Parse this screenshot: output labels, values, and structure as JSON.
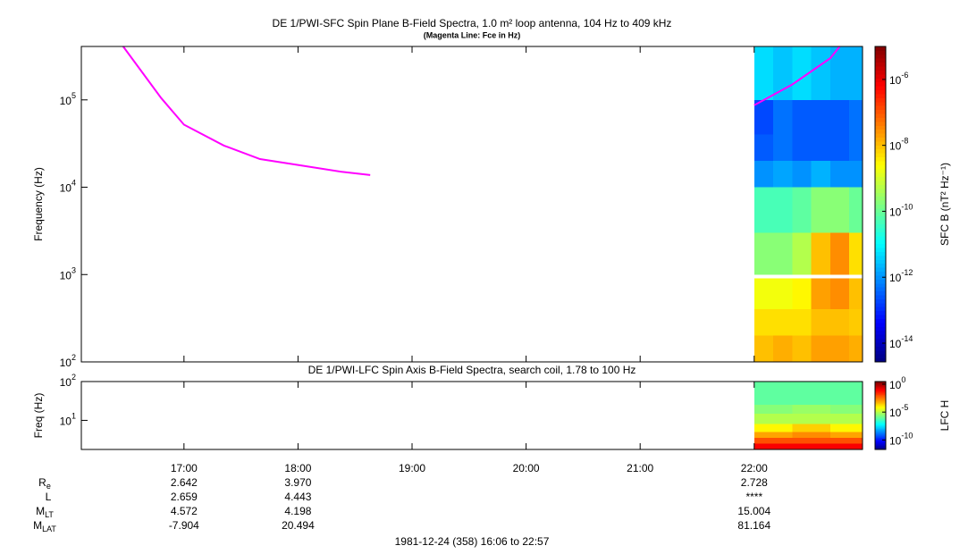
{
  "chart_data": [
    {
      "type": "spectrogram",
      "title": "DE 1/PWI-SFC  Spin Plane B-Field Spectra, 1.0 m² loop antenna, 104 Hz to 409 kHz",
      "subtitle": "(Magenta Line: Fce in Hz)",
      "ylabel": "Frequency (Hz)",
      "xlim": [
        "16:06",
        "22:57"
      ],
      "ylim": [
        100,
        409000
      ],
      "yscale": "log",
      "yticks": [
        {
          "value": 100,
          "label": "10",
          "exp": "2"
        },
        {
          "value": 1000,
          "label": "10",
          "exp": "3"
        },
        {
          "value": 10000,
          "label": "10",
          "exp": "4"
        },
        {
          "value": 100000,
          "label": "10",
          "exp": "5"
        }
      ],
      "time_edges": [
        "22:00",
        "22:10",
        "22:20",
        "22:30",
        "22:40",
        "22:50",
        "22:57"
      ],
      "freq_edges": [
        100,
        200,
        400,
        900,
        1000,
        3000,
        10000,
        20000,
        40000,
        100000,
        409000
      ],
      "z": [
        [
          1e-08,
          1.5e-08,
          1e-08,
          2e-08,
          2e-08,
          1.5e-08
        ],
        [
          5e-09,
          5e-09,
          5e-09,
          1e-08,
          1e-08,
          8e-09
        ],
        [
          2e-09,
          2e-09,
          3e-09,
          2e-08,
          3e-08,
          1e-08
        ],
        [
          null,
          null,
          null,
          null,
          null,
          null
        ],
        [
          2e-10,
          2e-10,
          5e-10,
          1e-08,
          3e-08,
          5e-09
        ],
        [
          5e-11,
          5e-11,
          8e-11,
          2e-10,
          2e-10,
          1e-10
        ],
        [
          1e-12,
          1.5e-12,
          1e-12,
          2e-12,
          1e-12,
          1e-12
        ],
        [
          3e-13,
          5e-13,
          3e-13,
          3e-13,
          3e-13,
          5e-13
        ],
        [
          2e-13,
          5e-13,
          3e-13,
          3e-13,
          3e-13,
          5e-13
        ],
        [
          5e-12,
          3e-12,
          5e-12,
          3e-12,
          2e-12,
          2e-12
        ]
      ],
      "colorbar": {
        "label": "SFC B (nT² Hz⁻¹)",
        "clim": [
          2.7e-15,
          1e-05
        ],
        "scale": "log",
        "ticks": [
          {
            "value": 1e-06,
            "label": "10",
            "exp": "-6"
          },
          {
            "value": 1e-08,
            "label": "10",
            "exp": "-8"
          },
          {
            "value": 1e-10,
            "label": "10",
            "exp": "-10"
          },
          {
            "value": 1e-12,
            "label": "10",
            "exp": "-12"
          },
          {
            "value": 1e-14,
            "label": "10",
            "exp": "-14"
          }
        ]
      },
      "series": [
        {
          "color": "#ff00ff",
          "x": [
            "16:28",
            "16:48",
            "17:00",
            "17:21",
            "17:40",
            "18:00",
            "18:23",
            "18:38",
            "20:00",
            "22:00",
            "22:20",
            "22:40",
            "22:45"
          ],
          "values": [
            409000,
            105000,
            52000,
            30000,
            21000,
            18000,
            15000,
            13800,
            null,
            87000,
            150000,
            300000,
            409000
          ]
        }
      ]
    },
    {
      "type": "spectrogram",
      "title": "DE 1/PWI-LFC  Spin Axis B-Field Spectra, search coil, 1.78 to 100 Hz",
      "ylabel": "Freq (Hz)",
      "xlim": [
        "16:06",
        "22:57"
      ],
      "xticks": [
        "17:00",
        "18:00",
        "19:00",
        "20:00",
        "21:00",
        "22:00"
      ],
      "ylim": [
        1.78,
        100
      ],
      "yscale": "log",
      "yticks": [
        {
          "value": 10,
          "label": "10",
          "exp": "1"
        },
        {
          "value": 100,
          "label": "10",
          "exp": "2"
        }
      ],
      "time_edges": [
        "22:00",
        "22:20",
        "22:40",
        "22:57"
      ],
      "freq_edges": [
        1.78,
        2.5,
        3.5,
        5,
        8,
        15,
        25,
        50,
        100
      ],
      "z": [
        [
          0.1,
          0.1,
          0.1
        ],
        [
          0.01,
          0.01,
          0.01
        ],
        [
          0.001,
          0.002,
          0.001
        ],
        [
          0.0001,
          0.0003,
          0.0001
        ],
        [
          1e-05,
          1e-05,
          1e-05
        ],
        [
          3e-06,
          5e-06,
          3e-06
        ],
        [
          1e-06,
          1e-06,
          1e-06
        ],
        [
          1e-06,
          1e-06,
          1e-06
        ]
      ],
      "colorbar": {
        "label": "LFC H",
        "clim": [
          2e-12,
          3
        ],
        "scale": "log",
        "ticks": [
          {
            "value": 1,
            "label": "10",
            "exp": "0"
          },
          {
            "value": 1e-05,
            "label": "10",
            "exp": "-5"
          },
          {
            "value": 1e-10,
            "label": "10",
            "exp": "-10"
          }
        ]
      }
    }
  ],
  "ephemeris": {
    "rows": [
      {
        "label": "R",
        "sub": "e",
        "values": [
          "2.642",
          "3.970",
          null,
          null,
          null,
          "2.728"
        ]
      },
      {
        "label": "L",
        "sub": null,
        "values": [
          "2.659",
          "4.443",
          null,
          null,
          null,
          "****"
        ]
      },
      {
        "label": "M",
        "sub": "LT",
        "values": [
          "4.572",
          "4.198",
          null,
          null,
          null,
          "15.004"
        ]
      },
      {
        "label": "M",
        "sub": "LAT",
        "values": [
          "-7.904",
          "20.494",
          null,
          null,
          null,
          "81.164"
        ]
      }
    ]
  },
  "footer": "1981-12-24 (358) 16:06 to 22:57"
}
